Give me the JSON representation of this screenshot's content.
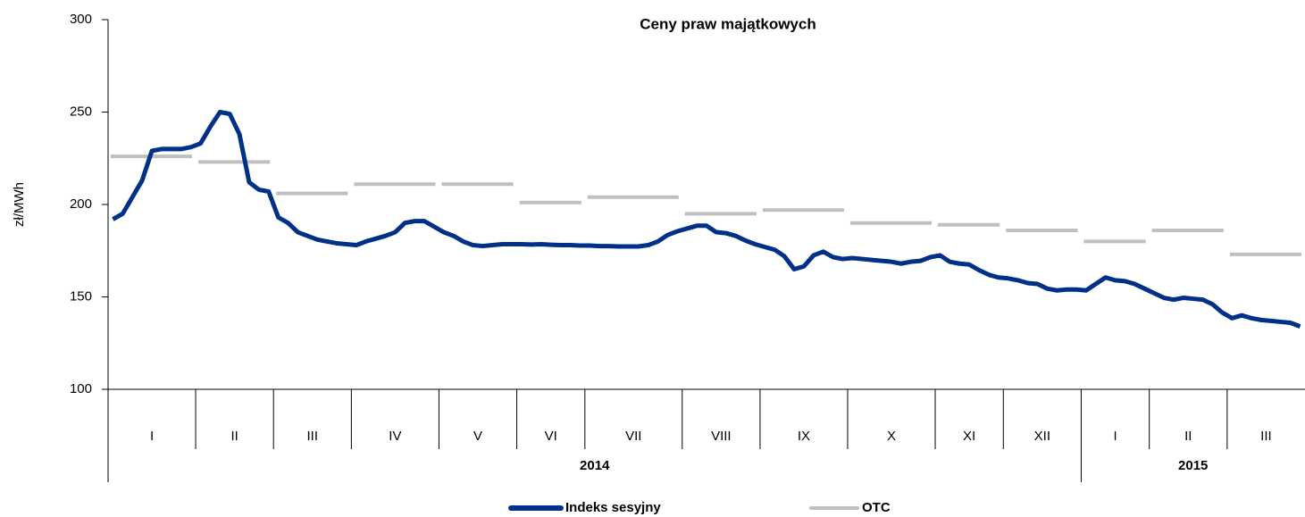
{
  "chart_data": {
    "type": "line",
    "title": "Ceny praw majątkowych",
    "y_label": "zł/MWh",
    "ylim": [
      100,
      300
    ],
    "yticks": [
      100,
      150,
      200,
      250,
      300
    ],
    "categories": [
      "I",
      null,
      null,
      null,
      null,
      null,
      null,
      null,
      null,
      "II",
      null,
      null,
      null,
      null,
      null,
      null,
      null,
      "III",
      null,
      null,
      null,
      null,
      null,
      null,
      null,
      "IV",
      null,
      null,
      null,
      null,
      null,
      null,
      null,
      null,
      "V",
      null,
      null,
      null,
      null,
      null,
      null,
      null,
      "VI",
      null,
      null,
      null,
      null,
      null,
      null,
      "VII",
      null,
      null,
      null,
      null,
      null,
      null,
      null,
      null,
      null,
      "VIII",
      null,
      null,
      null,
      null,
      null,
      null,
      null,
      "IX",
      null,
      null,
      null,
      null,
      null,
      null,
      null,
      null,
      "X",
      null,
      null,
      null,
      null,
      null,
      null,
      null,
      null,
      "XI",
      null,
      null,
      null,
      null,
      null,
      null,
      "XII",
      null,
      null,
      null,
      null,
      null,
      null,
      null,
      "I",
      null,
      null,
      null,
      null,
      null,
      null,
      "II",
      null,
      null,
      null,
      null,
      null,
      null,
      null,
      "III",
      null,
      null,
      null,
      null,
      null,
      null,
      null
    ],
    "years": [
      "2014",
      "2015"
    ],
    "series": [
      {
        "name": "Indeks sesyjny",
        "color": "#003087",
        "values": [
          192,
          195,
          204,
          213,
          229,
          230,
          230,
          230,
          231,
          233,
          242,
          250,
          249,
          238,
          212,
          208,
          207,
          193,
          190,
          185,
          183,
          181,
          180,
          179,
          178.5,
          178,
          180,
          181.5,
          183,
          185,
          190,
          191,
          191,
          188,
          185,
          183,
          180,
          178,
          177.5,
          178,
          178.5,
          178.5,
          178.5,
          178.3,
          178.5,
          178.2,
          178,
          178,
          177.8,
          177.8,
          177.5,
          177.5,
          177.3,
          177.3,
          177.3,
          178,
          180,
          183.5,
          185.5,
          187,
          188.5,
          188.5,
          185,
          184.5,
          183,
          180.5,
          178.5,
          177,
          175.5,
          172,
          165,
          166.5,
          172.5,
          174.5,
          171.5,
          170.5,
          171,
          170.5,
          170,
          169.5,
          169,
          168,
          169,
          169.5,
          171.5,
          172.5,
          169,
          168,
          167.5,
          164.5,
          162,
          160.5,
          160,
          159,
          157.5,
          157,
          154.5,
          153.5,
          154,
          154,
          153.5,
          157,
          160.5,
          159,
          158.5,
          157,
          154.5,
          152,
          149.5,
          148.5,
          149.5,
          149,
          148.5,
          146,
          141.5,
          138.5,
          140,
          138.5,
          137.5,
          137,
          136.5,
          136,
          134
        ]
      },
      {
        "name": "OTC",
        "color": "#bfbfbf",
        "values": [
          226,
          null,
          null,
          null,
          null,
          null,
          null,
          null,
          null,
          223,
          null,
          null,
          null,
          null,
          null,
          null,
          null,
          206,
          null,
          null,
          null,
          null,
          null,
          null,
          null,
          211,
          null,
          null,
          null,
          null,
          null,
          null,
          null,
          null,
          211,
          null,
          null,
          null,
          null,
          null,
          null,
          null,
          201,
          null,
          null,
          null,
          null,
          null,
          null,
          204,
          null,
          null,
          null,
          null,
          null,
          null,
          null,
          null,
          null,
          195,
          null,
          null,
          null,
          null,
          null,
          null,
          null,
          197,
          null,
          null,
          null,
          null,
          null,
          null,
          null,
          null,
          190,
          null,
          null,
          null,
          null,
          null,
          null,
          null,
          null,
          189,
          null,
          null,
          null,
          null,
          null,
          null,
          186,
          null,
          null,
          null,
          null,
          null,
          null,
          null,
          180,
          null,
          null,
          null,
          null,
          null,
          null,
          186,
          null,
          null,
          null,
          null,
          null,
          null,
          null,
          173,
          null,
          null,
          null,
          null,
          null,
          null,
          null
        ]
      }
    ]
  }
}
